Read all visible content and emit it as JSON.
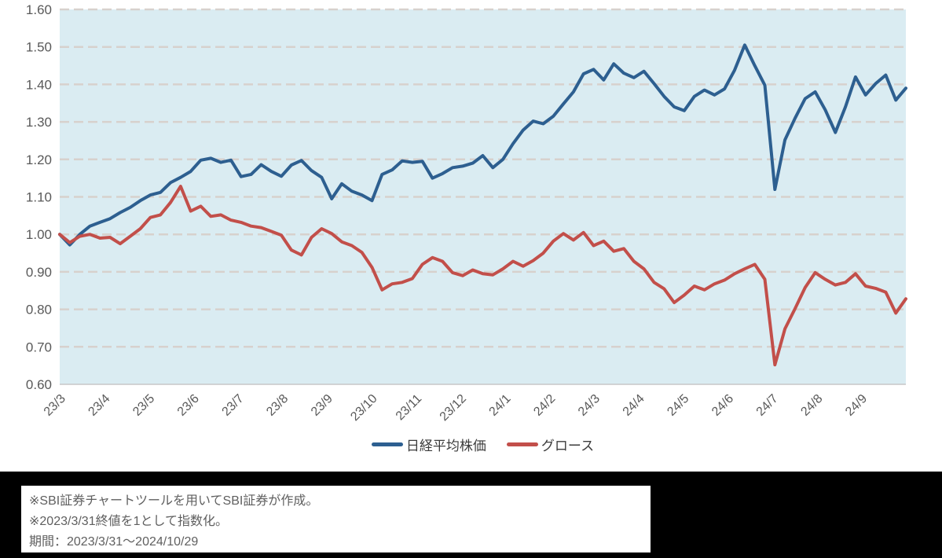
{
  "chart_data": {
    "type": "line",
    "title": "",
    "xlabel": "",
    "ylabel": "",
    "ylim": [
      0.6,
      1.6
    ],
    "y_tick_step": 0.1,
    "y_ticks": [
      "1.60",
      "1.50",
      "1.40",
      "1.30",
      "1.20",
      "1.10",
      "1.00",
      "0.90",
      "0.80",
      "0.70",
      "0.60"
    ],
    "x_ticks": [
      "23/3",
      "23/4",
      "23/5",
      "23/6",
      "23/7",
      "23/8",
      "23/9",
      "23/10",
      "23/11",
      "23/12",
      "24/1",
      "24/2",
      "24/3",
      "24/4",
      "24/5",
      "24/6",
      "24/7",
      "24/8",
      "24/9"
    ],
    "grid": "horizontal-dashed",
    "legend_position": "bottom-center",
    "plot_bg_color": "#daecf2",
    "gridline_color": "#d7d1cd",
    "axis_text_color": "#595959",
    "series": [
      {
        "name": "日経平均株価",
        "color": "#2d5f90",
        "values": [
          1.0,
          0.972,
          1.0,
          1.022,
          1.032,
          1.042,
          1.058,
          1.072,
          1.09,
          1.105,
          1.112,
          1.138,
          1.152,
          1.168,
          1.198,
          1.203,
          1.192,
          1.198,
          1.154,
          1.16,
          1.186,
          1.168,
          1.155,
          1.185,
          1.197,
          1.17,
          1.152,
          1.095,
          1.135,
          1.115,
          1.105,
          1.09,
          1.16,
          1.172,
          1.196,
          1.192,
          1.195,
          1.15,
          1.162,
          1.178,
          1.182,
          1.19,
          1.21,
          1.178,
          1.2,
          1.242,
          1.278,
          1.302,
          1.295,
          1.315,
          1.348,
          1.38,
          1.428,
          1.44,
          1.412,
          1.455,
          1.43,
          1.418,
          1.435,
          1.402,
          1.368,
          1.34,
          1.33,
          1.368,
          1.385,
          1.372,
          1.388,
          1.438,
          1.505,
          1.45,
          1.398,
          1.12,
          1.252,
          1.31,
          1.362,
          1.38,
          1.332,
          1.272,
          1.34,
          1.42,
          1.372,
          1.402,
          1.425,
          1.358,
          1.39
        ]
      },
      {
        "name": "グロース",
        "color": "#c24f4a",
        "values": [
          1.0,
          0.978,
          0.995,
          1.0,
          0.99,
          0.992,
          0.975,
          0.995,
          1.015,
          1.045,
          1.052,
          1.085,
          1.128,
          1.062,
          1.075,
          1.048,
          1.052,
          1.038,
          1.032,
          1.022,
          1.018,
          1.008,
          0.998,
          0.958,
          0.945,
          0.992,
          1.015,
          1.002,
          0.98,
          0.97,
          0.952,
          0.912,
          0.852,
          0.868,
          0.872,
          0.882,
          0.92,
          0.938,
          0.928,
          0.898,
          0.89,
          0.905,
          0.895,
          0.892,
          0.908,
          0.928,
          0.915,
          0.93,
          0.95,
          0.982,
          1.002,
          0.985,
          1.005,
          0.97,
          0.982,
          0.955,
          0.962,
          0.928,
          0.908,
          0.872,
          0.855,
          0.818,
          0.838,
          0.862,
          0.852,
          0.868,
          0.878,
          0.895,
          0.908,
          0.92,
          0.88,
          0.652,
          0.748,
          0.802,
          0.858,
          0.898,
          0.88,
          0.865,
          0.872,
          0.895,
          0.862,
          0.856,
          0.846,
          0.79,
          0.828
        ]
      }
    ]
  },
  "footer": {
    "notes": [
      "※SBI証券チャートツールを用いてSBI証券が作成。",
      "※2023/3/31終値を1として指数化。",
      "期間：2023/3/31～2024/10/29"
    ]
  }
}
